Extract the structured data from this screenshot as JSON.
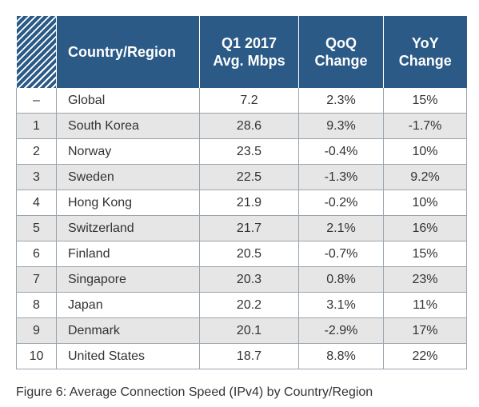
{
  "headers": {
    "country": "Country/Region",
    "speed_line1": "Q1 2017",
    "speed_line2": "Avg. Mbps",
    "qoq_line1": "QoQ",
    "qoq_line2": "Change",
    "yoy_line1": "YoY",
    "yoy_line2": "Change"
  },
  "rows": [
    {
      "rank": "–",
      "country": "Global",
      "speed": "7.2",
      "qoq": "2.3%",
      "yoy": "15%"
    },
    {
      "rank": "1",
      "country": "South Korea",
      "speed": "28.6",
      "qoq": "9.3%",
      "yoy": "-1.7%"
    },
    {
      "rank": "2",
      "country": "Norway",
      "speed": "23.5",
      "qoq": "-0.4%",
      "yoy": "10%"
    },
    {
      "rank": "3",
      "country": "Sweden",
      "speed": "22.5",
      "qoq": "-1.3%",
      "yoy": "9.2%"
    },
    {
      "rank": "4",
      "country": "Hong Kong",
      "speed": "21.9",
      "qoq": "-0.2%",
      "yoy": "10%"
    },
    {
      "rank": "5",
      "country": "Switzerland",
      "speed": "21.7",
      "qoq": "2.1%",
      "yoy": "16%"
    },
    {
      "rank": "6",
      "country": "Finland",
      "speed": "20.5",
      "qoq": "-0.7%",
      "yoy": "15%"
    },
    {
      "rank": "7",
      "country": "Singapore",
      "speed": "20.3",
      "qoq": "0.8%",
      "yoy": "23%"
    },
    {
      "rank": "8",
      "country": "Japan",
      "speed": "20.2",
      "qoq": "3.1%",
      "yoy": "11%"
    },
    {
      "rank": "9",
      "country": "Denmark",
      "speed": "20.1",
      "qoq": "-2.9%",
      "yoy": "17%"
    },
    {
      "rank": "10",
      "country": "United States",
      "speed": "18.7",
      "qoq": "8.8%",
      "yoy": "22%"
    }
  ],
  "caption": "Figure 6: Average Connection Speed (IPv4) by Country/Region",
  "colors": {
    "header_bg": "#2b5a86",
    "header_text": "#ffffff",
    "stripe": "#e6e6e6",
    "border": "#9aa5ae",
    "text": "#333333"
  }
}
